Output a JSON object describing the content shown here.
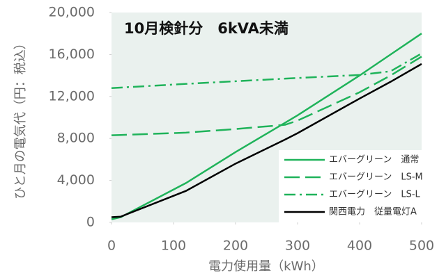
{
  "chart_data": {
    "type": "line",
    "title": "10月検針分　6kVA未満",
    "x_label": "電力使用量（kWh）",
    "y_label": "ひと月の電気代（円：税込）",
    "x": [
      0,
      15,
      120,
      200,
      280,
      300,
      400,
      450,
      500
    ],
    "series": [
      {
        "name": "エバーグリーン　通常",
        "color": "#1fb35a",
        "dash": "solid",
        "values": [
          300,
          500,
          3750,
          6700,
          9500,
          10200,
          14000,
          16000,
          18000
        ]
      },
      {
        "name": "エバーグリーン　LS-M",
        "color": "#1fb35a",
        "dash": "dashed",
        "values": [
          8300,
          8330,
          8550,
          8900,
          9300,
          9700,
          12400,
          14000,
          15800
        ]
      },
      {
        "name": "エバーグリーン　LS-L",
        "color": "#1fb35a",
        "dash": "dashdot",
        "values": [
          12800,
          12850,
          13200,
          13450,
          13700,
          13760,
          14050,
          14400,
          16100
        ]
      },
      {
        "name": "関西電力　従量電灯A",
        "color": "#000000",
        "dash": "solid",
        "values": [
          500,
          550,
          3000,
          5600,
          7900,
          8500,
          11800,
          13400,
          15100
        ]
      }
    ],
    "xlim": [
      0,
      500
    ],
    "xticks": [
      0,
      100,
      200,
      300,
      400,
      500
    ],
    "ylim": [
      0,
      20000
    ],
    "yticks": [
      0,
      {
        "value": 4000,
        "label": "4,000"
      },
      {
        "value": 8000,
        "label": "8,000"
      },
      {
        "value": 12000,
        "label": "12,000"
      },
      {
        "value": 16000,
        "label": "16,000"
      },
      {
        "value": 20000,
        "label": "20,000"
      }
    ],
    "legend": "lower right"
  }
}
